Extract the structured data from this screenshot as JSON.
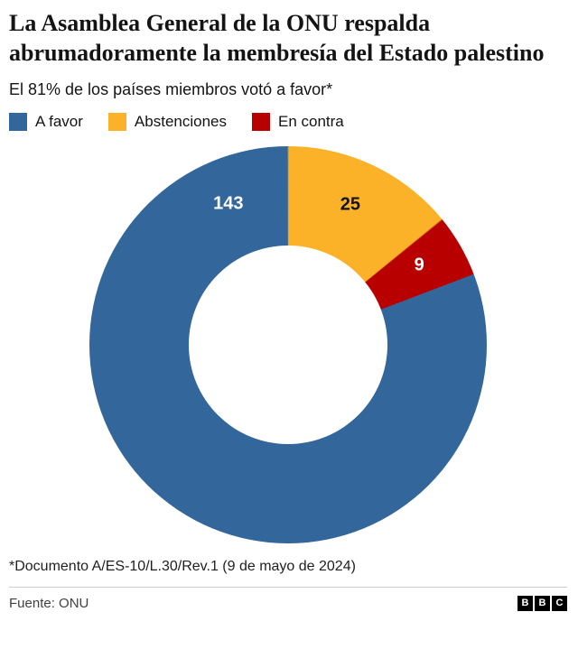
{
  "header": {
    "title": "La Asamblea General de la ONU respalda abrumadoramente la membresía del Estado palestino",
    "subtitle": "El 81% de los países miembros votó a favor*"
  },
  "legend": {
    "items": [
      {
        "label": "A favor",
        "color": "#33669A"
      },
      {
        "label": "Abstenciones",
        "color": "#FBB229"
      },
      {
        "label": "En contra",
        "color": "#B80000"
      }
    ]
  },
  "chart_data": {
    "type": "donut",
    "title": "La Asamblea General de la ONU respalda abrumadoramente la membresía del Estado palestino",
    "subtitle": "El 81% de los países miembros votó a favor*",
    "legend_position": "top",
    "segments": [
      {
        "label": "A favor",
        "value": 143,
        "color": "#33669A",
        "label_color": "#FFFFFF",
        "label_angle_deg": 337
      },
      {
        "label": "Abstenciones",
        "value": 25,
        "color": "#FBB229",
        "label_color": "#141414",
        "label_angle_deg": 24
      },
      {
        "label": "En contra",
        "value": 9,
        "color": "#B80000",
        "label_color": "#FFFFFF",
        "label_angle_deg": 59
      }
    ],
    "rotation_deg": 69.15,
    "inner_radius_ratio": 0.5,
    "label_radius_ratio": 0.77
  },
  "footnote": "*Documento A/ES-10/L.30/Rev.1 (9 de mayo de 2024)",
  "footer": {
    "source": "Fuente: ONU",
    "logo_letters": [
      "B",
      "B",
      "C"
    ]
  }
}
